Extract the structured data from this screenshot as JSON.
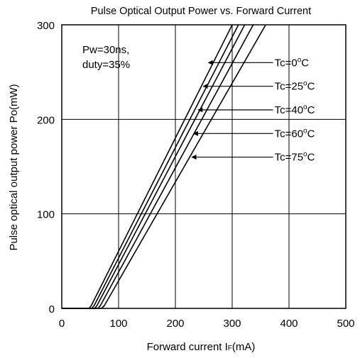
{
  "chart_data": {
    "type": "line",
    "title": "Pulse Optical Output Power vs. Forward Current",
    "xlabel_main": "Forward current I",
    "xlabel_sub": "F",
    "xlabel_unit": "(mA)",
    "ylabel": "Pulse optical output power Po(mW)",
    "xlim": [
      0,
      500
    ],
    "ylim": [
      0,
      300
    ],
    "xticks": [
      0,
      100,
      200,
      300,
      400,
      500
    ],
    "yticks": [
      0,
      100,
      200,
      300
    ],
    "grid": true,
    "annotation_lines": [
      "Pw=30ns,",
      "duty=35%"
    ],
    "series": [
      {
        "name": "Tc=0°C",
        "x": [
          0,
          48,
          52,
          300
        ],
        "y": [
          0,
          0,
          3,
          300
        ]
      },
      {
        "name": "Tc=25°C",
        "x": [
          0,
          53,
          57,
          311
        ],
        "y": [
          0,
          0,
          3,
          300
        ]
      },
      {
        "name": "Tc=40°C",
        "x": [
          0,
          58,
          62,
          322
        ],
        "y": [
          0,
          0,
          3,
          300
        ]
      },
      {
        "name": "Tc=60°C",
        "x": [
          0,
          64,
          68,
          337
        ],
        "y": [
          0,
          0,
          3,
          300
        ]
      },
      {
        "name": "Tc=75°C",
        "x": [
          0,
          70,
          75,
          359
        ],
        "y": [
          0,
          0,
          3,
          300
        ]
      }
    ],
    "series_labels": [
      {
        "prefix": "Tc=",
        "num": "0",
        "deg": "o",
        "unit": "C",
        "y": 260,
        "arrow_x": 258
      },
      {
        "prefix": "Tc=",
        "num": "25",
        "deg": "o",
        "unit": "C",
        "y": 235,
        "arrow_x": 249
      },
      {
        "prefix": "Tc=",
        "num": "40",
        "deg": "o",
        "unit": "C",
        "y": 210,
        "arrow_x": 240
      },
      {
        "prefix": "Tc=",
        "num": "60",
        "deg": "o",
        "unit": "C",
        "y": 185,
        "arrow_x": 232
      },
      {
        "prefix": "Tc=",
        "num": "75",
        "deg": "o",
        "unit": "C",
        "y": 160,
        "arrow_x": 229
      }
    ],
    "label_arrow_start_x": 372
  }
}
